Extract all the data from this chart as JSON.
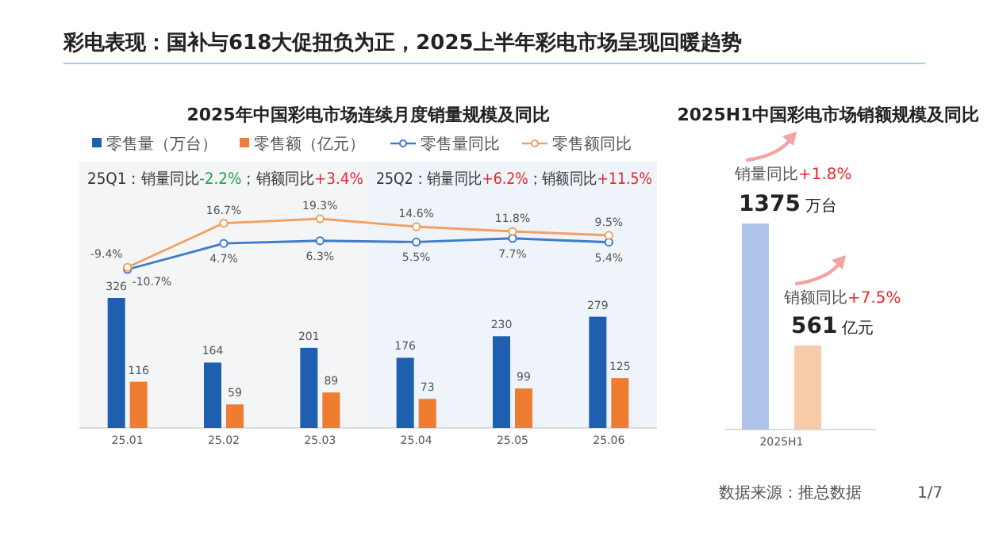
{
  "chart_data": [
    {
      "type": "bar",
      "categories": [
        "25.01",
        "25.02",
        "25.03",
        "25.04",
        "25.05",
        "25.06"
      ],
      "legend": "top",
      "data_labels": true,
      "series": [
        {
          "name": "零售量（万台）",
          "color": "#1f5fb0",
          "values": [
            326,
            164,
            201,
            176,
            230,
            279
          ]
        },
        {
          "name": "零售额（亿元）",
          "color": "#ef7d31",
          "values": [
            116,
            59,
            89,
            73,
            99,
            125
          ]
        }
      ],
      "bands": [
        {
          "axis": "x",
          "from": "25.01",
          "to": "25.03",
          "label": "25Q1：销量同比-2.2%；销额同比+3.4%",
          "color": "#f4f5f7"
        },
        {
          "axis": "x",
          "from": "25.04",
          "to": "25.06",
          "label": "25Q2：销量同比+6.2%；销额同比+11.5%",
          "color": "#eef4fa"
        }
      ],
      "annotations": [
        "彩电表现：国补与618大促扭负为正，2025上半年彩电市场呈现回暖趋势",
        "数据来源：推总数据",
        "1/7"
      ]
    },
    {
      "type": "line",
      "title": "2025年中国彩电市场连续月度销量规模及同比",
      "categories": [
        "25.01",
        "25.02",
        "25.03",
        "25.04",
        "25.05",
        "25.06"
      ],
      "legend": "top",
      "tick_labels": false,
      "series": [
        {
          "name": "零售量同比",
          "marker": "circle",
          "color": "#3d7cc9",
          "values": [
            -10.7,
            4.7,
            6.3,
            5.5,
            7.7,
            5.4
          ],
          "value_labels": [
            "-10.7%",
            "4.7%",
            "6.3%",
            "5.5%",
            "7.7%",
            "5.4%"
          ]
        },
        {
          "name": "零售额同比",
          "marker": "circle",
          "color": "#f2a061",
          "values": [
            -9.4,
            16.7,
            19.3,
            14.6,
            11.8,
            9.5
          ],
          "value_labels": [
            "-9.4%",
            "16.7%",
            "19.3%",
            "14.6%",
            "11.8%",
            "9.5%"
          ]
        }
      ]
    },
    {
      "type": "bar",
      "title": "2025H1中国彩电市场销额规模及同比",
      "categories": [
        "2025H1"
      ],
      "series": [
        {
          "color": "#aec3e8",
          "values": [
            1375
          ],
          "value_labels": [
            "1375 万台"
          ]
        },
        {
          "color": "#f8cba8",
          "values": [
            561
          ],
          "value_labels": [
            "561 亿元"
          ]
        }
      ],
      "annotations": [
        "销量同比+1.8%",
        "销额同比+7.5%"
      ]
    }
  ]
}
